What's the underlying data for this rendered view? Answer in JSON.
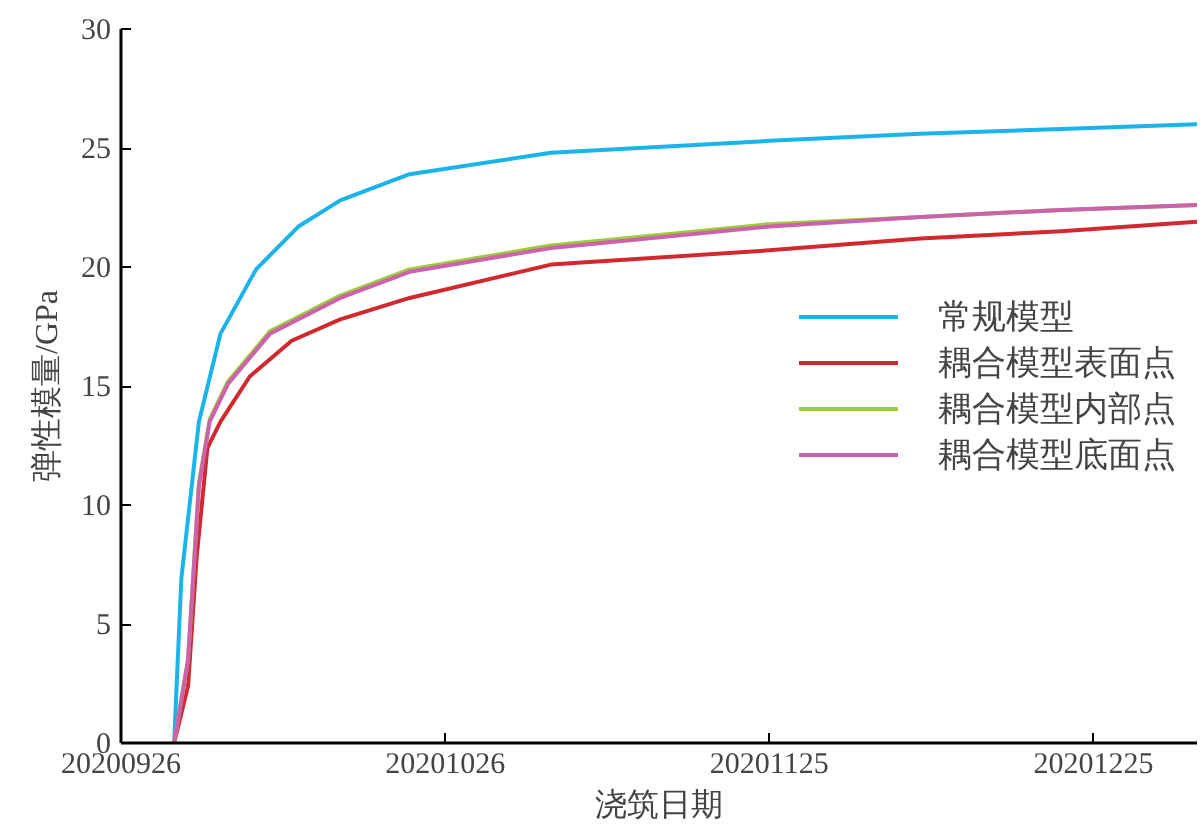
{
  "chart_data": {
    "type": "line",
    "xlabel": "浇筑日期",
    "ylabel": "弹性模量/GPa",
    "xlim": [
      "2020-09-26",
      "2021-01-03T14:00"
    ],
    "xticks": [
      {
        "value": "2020-09-26",
        "label": "20200926"
      },
      {
        "value": "2020-10-26",
        "label": "20201026"
      },
      {
        "value": "2020-11-25",
        "label": "20201125"
      },
      {
        "value": "2020-12-25",
        "label": "20201225"
      }
    ],
    "ylim": [
      0,
      30
    ],
    "yticks": [
      0,
      5,
      10,
      15,
      20,
      25,
      30
    ],
    "grid": false,
    "legend": "right",
    "line_style": "solid",
    "marker": "none",
    "series": [
      {
        "name": "常规模型",
        "color": "#1ab4ea",
        "x": [
          "2020-09-30T22:00",
          "2020-10-01T14:00",
          "2020-10-03T05:00",
          "2020-10-05T05:00",
          "2020-10-08T12:00",
          "2020-10-12T10:00",
          "2020-10-16T07:00",
          "2020-10-22T17:00",
          "2020-11-04T19:00",
          "2020-11-25",
          "2020-12-09",
          "2020-12-22",
          "2021-01-03T14:00"
        ],
        "values": [
          0,
          6.9,
          13.5,
          17.2,
          19.9,
          21.7,
          22.8,
          23.9,
          24.8,
          25.3,
          25.6,
          25.8,
          26.0
        ]
      },
      {
        "name": "耦合模型表面点",
        "color": "#d02a30",
        "x": [
          "2020-09-30T22:00",
          "2020-10-02T05:00",
          "2020-10-03T00:00",
          "2020-10-04T00:00",
          "2020-10-05T05:00",
          "2020-10-07T22:00",
          "2020-10-11T19:00",
          "2020-10-16T07:00",
          "2020-10-22T17:00",
          "2020-11-04T19:00",
          "2020-11-25",
          "2020-12-09",
          "2020-12-22",
          "2021-01-03T14:00"
        ],
        "values": [
          0,
          2.4,
          7.8,
          12.4,
          13.5,
          15.4,
          16.9,
          17.8,
          18.7,
          20.1,
          20.7,
          21.2,
          21.5,
          21.9
        ]
      },
      {
        "name": "耦合模型内部点",
        "color": "#9ccc3a",
        "x": [
          "2020-09-30T22:00",
          "2020-10-02T05:00",
          "2020-10-03T05:00",
          "2020-10-04T05:00",
          "2020-10-05T22:00",
          "2020-10-09T19:00",
          "2020-10-16T07:00",
          "2020-10-22T17:00",
          "2020-11-04T19:00",
          "2020-11-25",
          "2020-12-09",
          "2020-12-22",
          "2021-01-03T14:00"
        ],
        "values": [
          0,
          3.5,
          10.9,
          13.6,
          15.2,
          17.3,
          18.8,
          19.9,
          20.9,
          21.8,
          22.1,
          22.4,
          22.6
        ]
      },
      {
        "name": "耦合模型底面点",
        "color": "#cc62ac",
        "x": [
          "2020-09-30T22:00",
          "2020-10-02T05:00",
          "2020-10-03T05:00",
          "2020-10-04T05:00",
          "2020-10-05T22:00",
          "2020-10-09T19:00",
          "2020-10-16T07:00",
          "2020-10-22T17:00",
          "2020-11-04T19:00",
          "2020-11-25",
          "2020-12-09",
          "2020-12-22",
          "2021-01-03T14:00"
        ],
        "values": [
          0,
          3.5,
          10.8,
          13.5,
          15.1,
          17.2,
          18.7,
          19.8,
          20.8,
          21.7,
          22.1,
          22.4,
          22.6
        ]
      }
    ]
  }
}
